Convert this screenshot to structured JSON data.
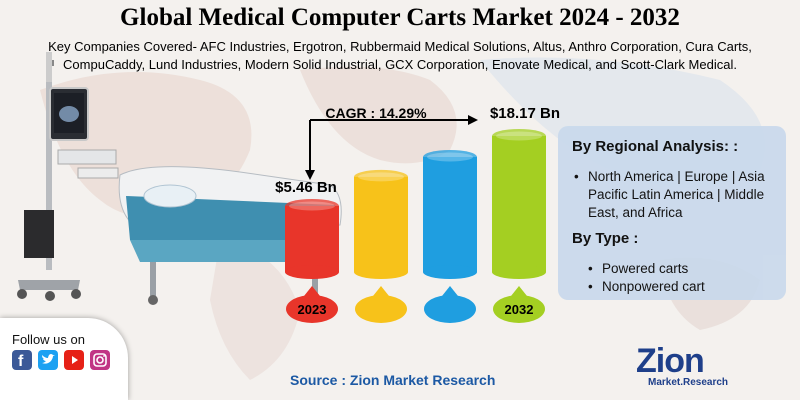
{
  "title": "Global Medical Computer Carts Market 2024 - 2032",
  "subtitle": "Key Companies Covered- AFC Industries, Ergotron, Rubbermaid Medical Solutions, Altus, Anthro Corporation, Cura Carts, CompuCaddy, Lund Industries, Modern Solid Industrial, GCX Corporation, Enovate Medical, and Scott-Clark Medical.",
  "chart_data": {
    "type": "bar",
    "categories": [
      "2023",
      "",
      "",
      "2032"
    ],
    "values": [
      5.46,
      null,
      null,
      18.17
    ],
    "bar_colors": [
      "#e8352a",
      "#f7c21a",
      "#1f9ee0",
      "#a4cf22"
    ],
    "value_labels": [
      "$5.46 Bn",
      "",
      "",
      "$18.17 Bn"
    ],
    "cagr_label": "CAGR : 14.29%"
  },
  "panel": {
    "regional_heading": "By Regional Analysis: :",
    "regional_items": [
      "North America | Europe | Asia Pacific Latin America | Middle East, and Africa"
    ],
    "type_heading": "By Type :",
    "type_items": [
      "Powered carts",
      "Nonpowered cart"
    ]
  },
  "follow": {
    "label": "Follow us on",
    "icons": [
      "facebook-icon",
      "twitter-icon",
      "youtube-icon",
      "instagram-icon"
    ]
  },
  "source": "Source : Zion Market Research",
  "logo": {
    "name": "Zion",
    "sub": "Market.Research"
  },
  "colors": {
    "panel": "#c9d9ec",
    "source": "#1c59a4",
    "logo": "#1e3f8a"
  }
}
